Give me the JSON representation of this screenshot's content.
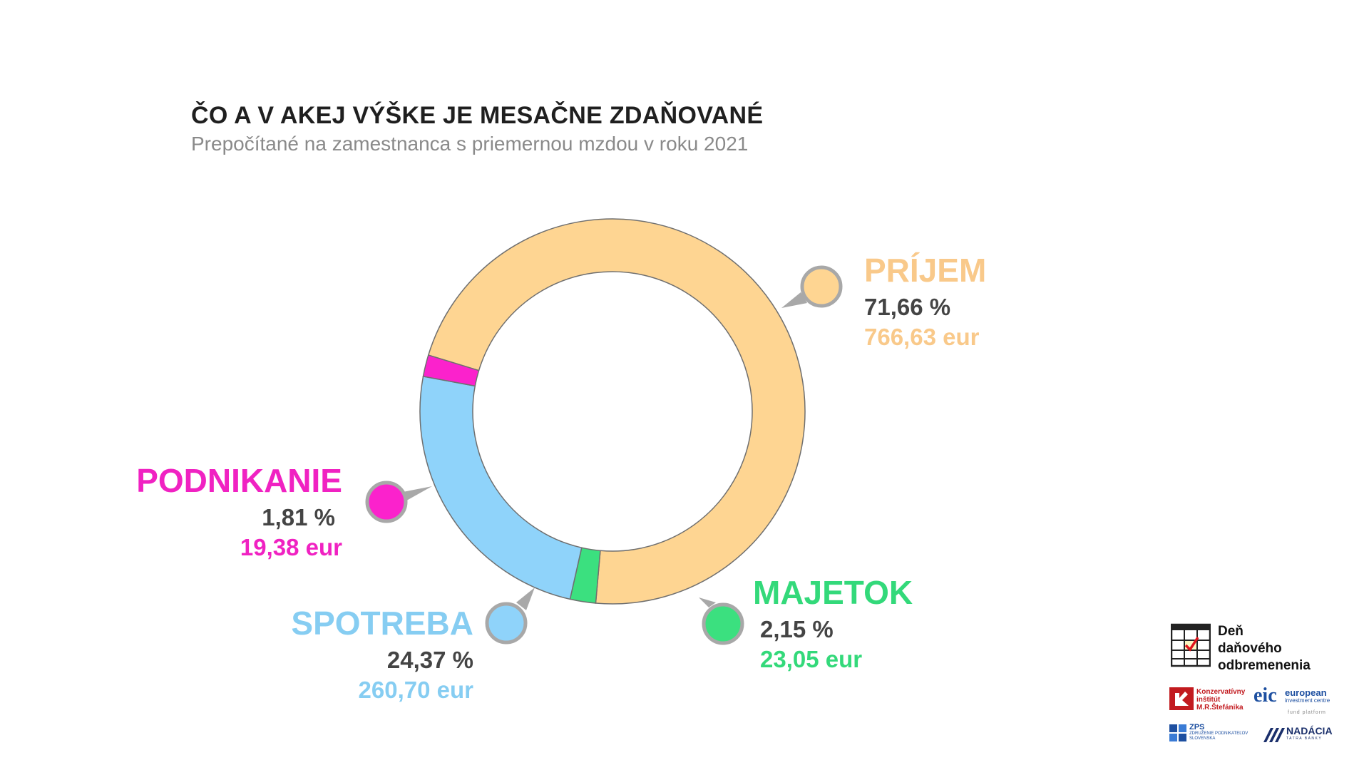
{
  "header": {
    "title": "ČO A V AKEJ VÝŠKE JE MESAČNE ZDAŇOVANÉ",
    "subtitle": "Prepočítané na zamestnanca s priemernou mzdou v roku 2021"
  },
  "chart_data": {
    "type": "pie",
    "variant": "donut",
    "title": "ČO A V AKEJ VÝŠKE JE MESAČNE ZDAŇOVANÉ",
    "subtitle": "Prepočítané na zamestnanca s priemernou mzdou v roku 2021",
    "slices": [
      {
        "name": "PRÍJEM",
        "value": 71.66,
        "pct_label": "71,66 %",
        "eur_label": "766,63 eur",
        "color": "#fed592",
        "label_color": "#f9c98a"
      },
      {
        "name": "MAJETOK",
        "value": 2.15,
        "pct_label": "2,15 %",
        "eur_label": "23,05 eur",
        "color": "#3be07f",
        "label_color": "#33d97a"
      },
      {
        "name": "SPOTREBA",
        "value": 24.37,
        "pct_label": "24,37 %",
        "eur_label": "260,70 eur",
        "color": "#8fd3fa",
        "label_color": "#86cdf2"
      },
      {
        "name": "PODNIKANIE",
        "value": 1.81,
        "pct_label": "1,81 %",
        "eur_label": "19,38 eur",
        "color": "#fb22cc",
        "label_color": "#f022c2"
      }
    ],
    "start_direction": "left-center going clockwise",
    "legend": "callouts"
  },
  "logos": {
    "ddo_lines": [
      "Deň",
      "daňového",
      "odbremenenia"
    ],
    "kimrs": [
      "Konzervatívny",
      "inštitút",
      "M.R.Štefánika"
    ],
    "eic": "eic",
    "eic_text": [
      "european",
      "investment centre"
    ],
    "eic_sub": "fund platform",
    "zps": "ZPS",
    "zps_sub": [
      "ZDRUŽENIE PODNIKATEĽOV",
      "SLOVENSKA"
    ],
    "nadacia": "NADÁCIA",
    "nadacia_sub": "TATRA BANKY"
  }
}
